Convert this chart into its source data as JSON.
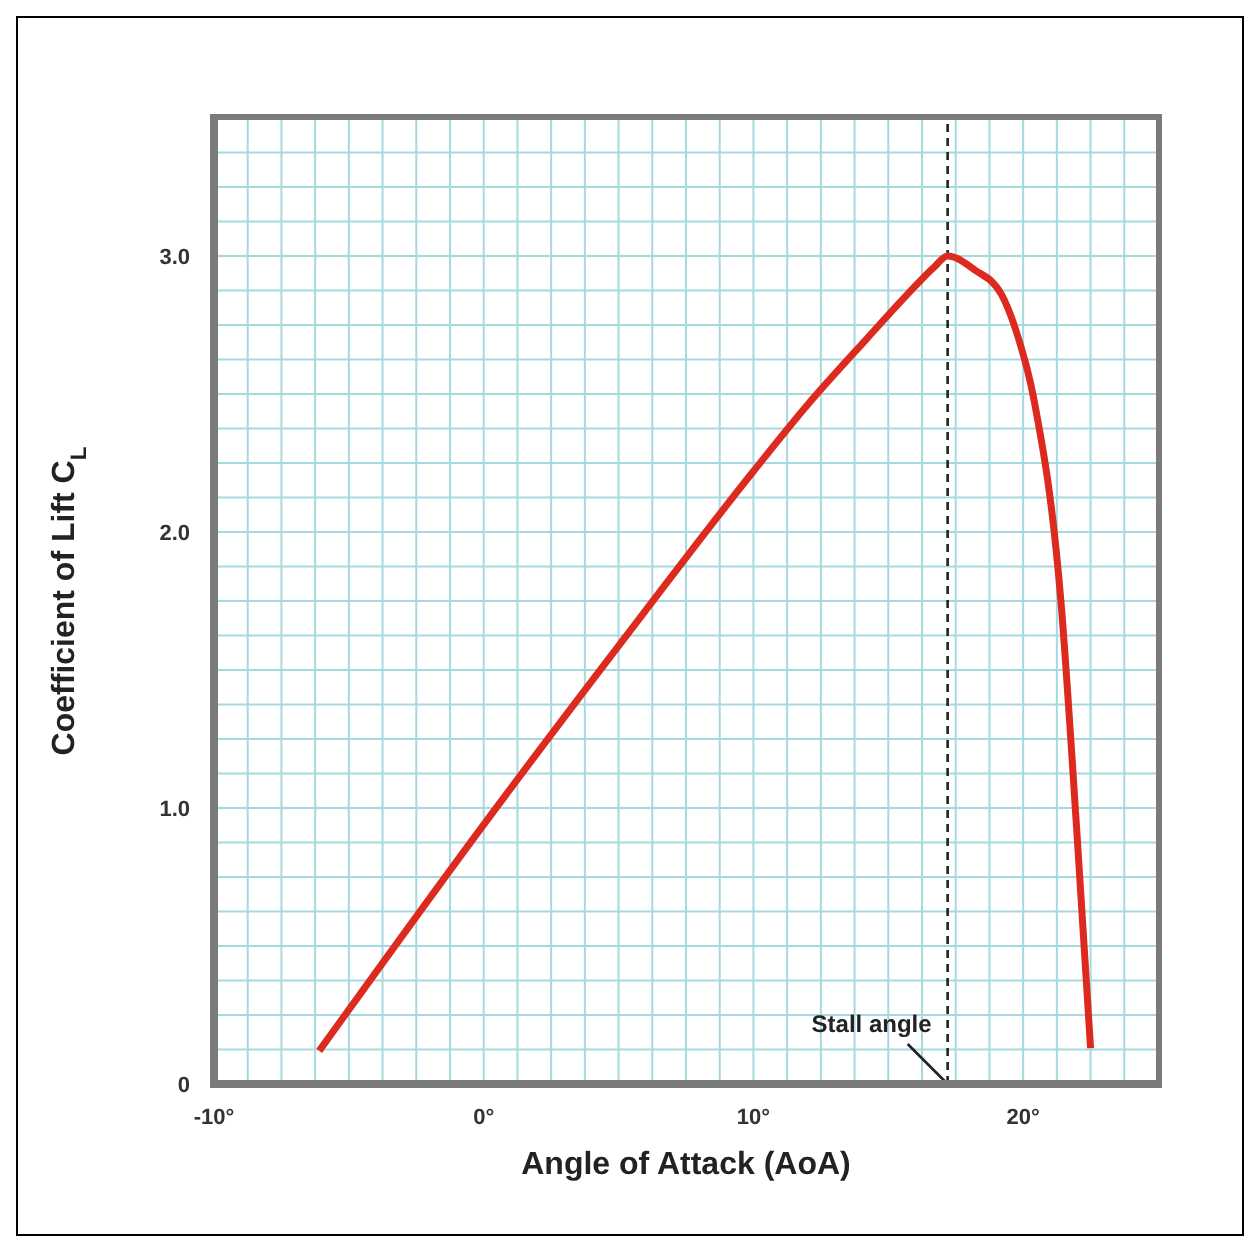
{
  "chart_data": {
    "type": "line",
    "xlabel": "Angle of Attack (AoA)",
    "ylabel": "Coefficient of Lift C$_{L}$",
    "x": [
      -6.1,
      0,
      5.1,
      10,
      12,
      14.2,
      15.7,
      16.7,
      17.2,
      18.2,
      19.2,
      19.7,
      20.4,
      21.4,
      22,
      22.5
    ],
    "series": [
      {
        "color": "#dd2a1f",
        "values": [
          0.12,
          0.94,
          1.6,
          2.22,
          2.46,
          2.7,
          2.86,
          2.96,
          3.0,
          2.95,
          2.86,
          2.74,
          2.48,
          1.75,
          0.9,
          0.13
        ]
      }
    ],
    "xlim": [
      -10,
      25
    ],
    "xticks": [
      {
        "value": -10,
        "label": "-10°"
      },
      {
        "value": -8.75,
        "label": null
      },
      {
        "value": -7.5,
        "label": null
      },
      {
        "value": -6.25,
        "label": null
      },
      {
        "value": -5,
        "label": null
      },
      {
        "value": -3.75,
        "label": null
      },
      {
        "value": -2.5,
        "label": null
      },
      {
        "value": -1.25,
        "label": null
      },
      {
        "value": 0,
        "label": "0°"
      },
      {
        "value": 1.25,
        "label": null
      },
      {
        "value": 2.5,
        "label": null
      },
      {
        "value": 3.75,
        "label": null
      },
      {
        "value": 5,
        "label": null
      },
      {
        "value": 6.25,
        "label": null
      },
      {
        "value": 7.5,
        "label": null
      },
      {
        "value": 8.75,
        "label": null
      },
      {
        "value": 10,
        "label": "10°"
      },
      {
        "value": 11.25,
        "label": null
      },
      {
        "value": 12.5,
        "label": null
      },
      {
        "value": 13.75,
        "label": null
      },
      {
        "value": 15,
        "label": null
      },
      {
        "value": 16.25,
        "label": null
      },
      {
        "value": 17.5,
        "label": null
      },
      {
        "value": 18.75,
        "label": null
      },
      {
        "value": 20,
        "label": "20°"
      },
      {
        "value": 21.25,
        "label": null
      },
      {
        "value": 22.5,
        "label": null
      },
      {
        "value": 23.75,
        "label": null
      }
    ],
    "ylim": [
      0,
      3.5
    ],
    "yticks": [
      0,
      {
        "value": 0.125,
        "label": null
      },
      {
        "value": 0.25,
        "label": null
      },
      {
        "value": 0.375,
        "label": null
      },
      {
        "value": 0.5,
        "label": null
      },
      {
        "value": 0.625,
        "label": null
      },
      {
        "value": 0.75,
        "label": null
      },
      {
        "value": 0.875,
        "label": null
      },
      {
        "value": 1,
        "label": "1.0"
      },
      {
        "value": 1.125,
        "label": null
      },
      {
        "value": 1.25,
        "label": null
      },
      {
        "value": 1.375,
        "label": null
      },
      {
        "value": 1.5,
        "label": null
      },
      {
        "value": 1.625,
        "label": null
      },
      {
        "value": 1.75,
        "label": null
      },
      {
        "value": 1.875,
        "label": null
      },
      {
        "value": 2,
        "label": "2.0"
      },
      {
        "value": 2.125,
        "label": null
      },
      {
        "value": 2.25,
        "label": null
      },
      {
        "value": 2.375,
        "label": null
      },
      {
        "value": 2.5,
        "label": null
      },
      {
        "value": 2.625,
        "label": null
      },
      {
        "value": 2.75,
        "label": null
      },
      {
        "value": 2.875,
        "label": null
      },
      {
        "value": 3,
        "label": "3.0"
      },
      {
        "value": 3.125,
        "label": null
      },
      {
        "value": 3.25,
        "label": null
      },
      {
        "value": 3.375,
        "label": null
      }
    ],
    "grid": true,
    "marker": "none",
    "line_style": "solid",
    "ref_lines": [
      {
        "axis": "x",
        "value": 17.2,
        "label": "Stall angle",
        "color": "#222222",
        "line_style": "dashed"
      }
    ]
  }
}
